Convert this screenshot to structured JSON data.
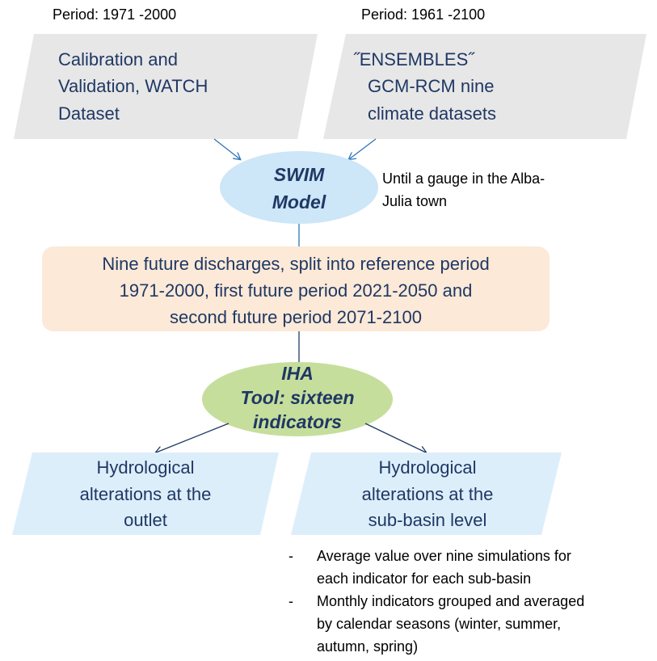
{
  "periods": [
    "Period: 1971 -2000",
    "Period: 1961 -2100"
  ],
  "nodes": [
    {
      "lines": [
        "Calibration and",
        "Validation, WATCH",
        "Dataset"
      ]
    },
    {
      "lines": [
        "˝ENSEMBLES˝",
        "GCM-RCM nine",
        "climate datasets"
      ]
    },
    {
      "lines": [
        "SWIM",
        "Model"
      ]
    },
    {
      "lines": [
        "Nine future discharges, split into reference period",
        "1971-2000, first future period 2021-2050 and",
        "second future period 2071-2100"
      ]
    },
    {
      "lines": [
        "IHA",
        "Tool:  sixteen",
        "indicators"
      ]
    },
    {
      "lines": [
        "Hydrological",
        "alterations at the",
        "outlet"
      ]
    },
    {
      "lines": [
        "Hydrological",
        "alterations at the",
        "sub-basin level"
      ]
    }
  ],
  "note": [
    "Until a gauge in the Alba-",
    "Julia town"
  ],
  "bullets": [
    {
      "marker": "-",
      "lines": [
        "Average value over nine simulations for",
        "each indicator for each sub-basin"
      ]
    },
    {
      "marker": "-",
      "lines": [
        "Monthly indicators grouped and averaged",
        "by calendar seasons (winter, summer,",
        "autumn, spring)"
      ]
    }
  ]
}
